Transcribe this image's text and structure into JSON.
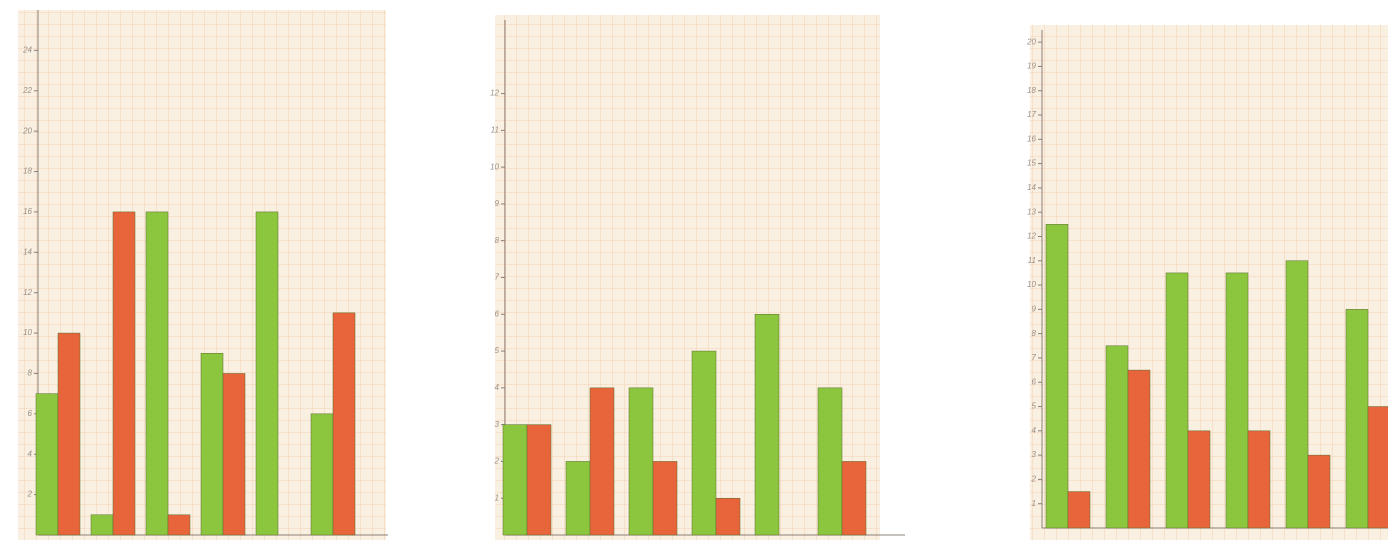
{
  "chart_data": [
    {
      "type": "bar",
      "categories": [
        null,
        null,
        null,
        null,
        null,
        null
      ],
      "series": [
        {
          "color": "#8cc63f",
          "values": [
            7,
            1,
            16,
            9,
            16,
            6
          ]
        },
        {
          "color": "#e8643a",
          "values": [
            10,
            16,
            1,
            8,
            0,
            11
          ]
        }
      ],
      "ylim": [
        0,
        26
      ],
      "yticks": [
        2,
        4,
        6,
        8,
        10,
        12,
        14,
        16,
        18,
        20,
        22,
        24
      ]
    },
    {
      "type": "bar",
      "categories": [
        null,
        null,
        null,
        null,
        null,
        null
      ],
      "series": [
        {
          "color": "#8cc63f",
          "values": [
            3,
            2,
            4,
            5,
            6,
            4
          ]
        },
        {
          "color": "#e8643a",
          "values": [
            3,
            4,
            2,
            1,
            0,
            2
          ]
        }
      ],
      "ylim": [
        0,
        14
      ],
      "yticks": [
        1,
        2,
        3,
        4,
        5,
        6,
        7,
        8,
        9,
        10,
        11,
        12
      ]
    },
    {
      "type": "bar",
      "categories": [
        null,
        null,
        null,
        null,
        null,
        null
      ],
      "series": [
        {
          "color": "#8cc63f",
          "values": [
            12.5,
            7.5,
            10.5,
            10.5,
            11,
            9
          ]
        },
        {
          "color": "#e8643a",
          "values": [
            1.5,
            6.5,
            4,
            4,
            3,
            5
          ]
        }
      ],
      "ylim": [
        0,
        20.5
      ],
      "yticks": [
        1,
        2,
        3,
        4,
        5,
        6,
        7,
        8,
        9,
        10,
        11,
        12,
        13,
        14,
        15,
        16,
        17,
        18,
        19,
        20
      ]
    }
  ]
}
